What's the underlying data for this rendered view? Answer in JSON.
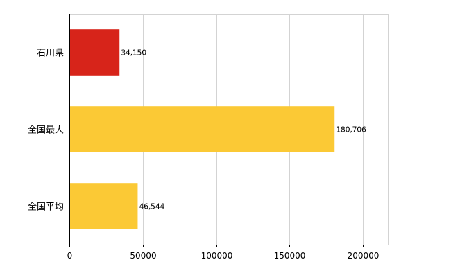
{
  "chart_data": {
    "type": "bar",
    "orientation": "horizontal",
    "categories": [
      "石川県",
      "全国最大",
      "全国平均"
    ],
    "values": [
      34150,
      180706,
      46544
    ],
    "value_labels": [
      "34,150",
      "180,706",
      "46,544"
    ],
    "bar_colors": [
      "#d7241a",
      "#fbc935",
      "#fbc935"
    ],
    "xlim": [
      0,
      217000
    ],
    "x_ticks": [
      0,
      50000,
      100000,
      150000,
      200000
    ],
    "x_tick_labels": [
      "0",
      "50000",
      "100000",
      "150000",
      "200000"
    ],
    "grid": true,
    "grid_color": "#d3d3d3",
    "legend": false,
    "title": "",
    "xlabel": "",
    "ylabel": ""
  }
}
